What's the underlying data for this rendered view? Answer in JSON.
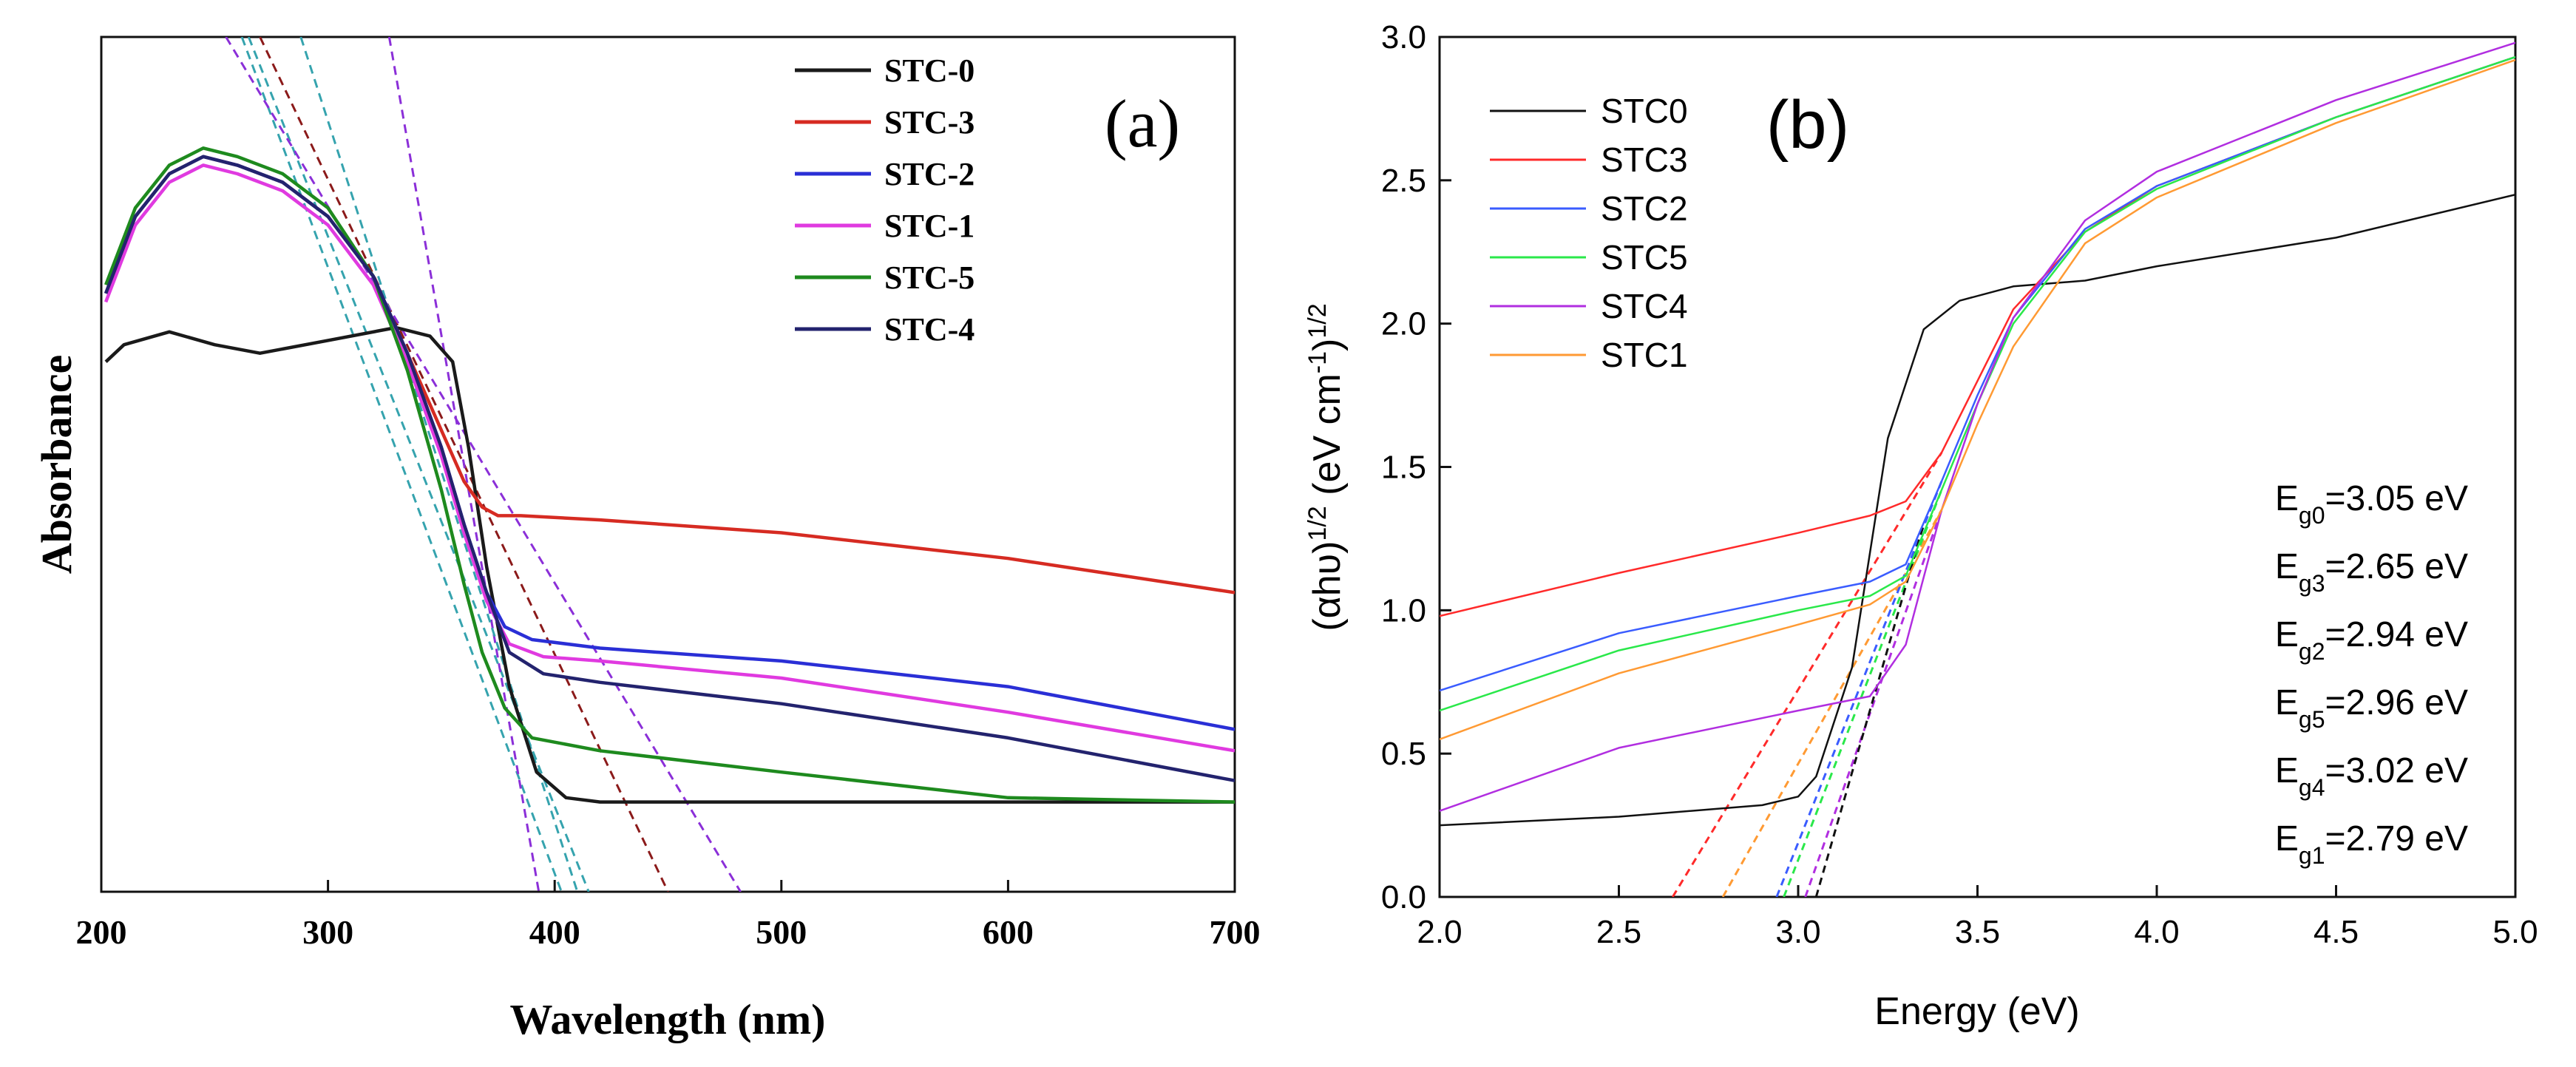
{
  "colors": {
    "black": "#1a1a1a",
    "red": "#d62b22",
    "blue": "#2a2fd6",
    "magenta": "#e03ae0",
    "green": "#1e8a1e",
    "navy": "#23236e",
    "tealDash": "#35a3ae",
    "brownDash": "#8b1a1a",
    "purpleDash": "#8b2fd8",
    "b_black": "#111111",
    "b_red": "#ff2a2a",
    "b_blue": "#3a5cff",
    "b_green": "#2ae84a",
    "b_purple": "#b12ee0",
    "b_orange": "#ff9a33"
  },
  "chart_data": [
    {
      "type": "line",
      "panel_label": "(a)",
      "xlabel": "Wavelength (nm)",
      "ylabel": "Absorbance",
      "xlim": [
        200,
        700
      ],
      "ylim": [
        0,
        1
      ],
      "xticks": [
        "200",
        "300",
        "400",
        "500",
        "600",
        "700"
      ],
      "yticks": [],
      "legend": [
        "STC-0",
        "STC-3",
        "STC-2",
        "STC-1",
        "STC-5",
        "STC-4"
      ],
      "legend_position": "top-right",
      "series": [
        {
          "name": "STC-0",
          "color_key": "black",
          "x": [
            202,
            210,
            230,
            250,
            270,
            300,
            330,
            345,
            355,
            362,
            370,
            380,
            392,
            405,
            420,
            500,
            600,
            700
          ],
          "y": [
            0.62,
            0.64,
            0.655,
            0.64,
            0.63,
            0.645,
            0.66,
            0.65,
            0.62,
            0.52,
            0.38,
            0.24,
            0.14,
            0.11,
            0.105,
            0.105,
            0.105,
            0.105
          ]
        },
        {
          "name": "STC-3",
          "color_key": "red",
          "x": [
            202,
            215,
            230,
            245,
            260,
            280,
            300,
            320,
            335,
            350,
            360,
            368,
            375,
            385,
            420,
            500,
            600,
            700
          ],
          "y": [
            0.7,
            0.79,
            0.84,
            0.86,
            0.85,
            0.83,
            0.79,
            0.72,
            0.63,
            0.54,
            0.48,
            0.45,
            0.44,
            0.44,
            0.435,
            0.42,
            0.39,
            0.35
          ]
        },
        {
          "name": "STC-2",
          "color_key": "blue",
          "x": [
            202,
            215,
            230,
            245,
            260,
            280,
            300,
            320,
            335,
            350,
            360,
            370,
            378,
            390,
            420,
            500,
            600,
            700
          ],
          "y": [
            0.7,
            0.79,
            0.84,
            0.86,
            0.85,
            0.83,
            0.79,
            0.72,
            0.63,
            0.52,
            0.43,
            0.35,
            0.31,
            0.295,
            0.285,
            0.27,
            0.24,
            0.19
          ]
        },
        {
          "name": "STC-1",
          "color_key": "magenta",
          "x": [
            202,
            215,
            230,
            245,
            260,
            280,
            300,
            320,
            335,
            350,
            360,
            370,
            380,
            395,
            420,
            500,
            600,
            700
          ],
          "y": [
            0.69,
            0.78,
            0.83,
            0.85,
            0.84,
            0.82,
            0.78,
            0.71,
            0.62,
            0.51,
            0.42,
            0.34,
            0.29,
            0.275,
            0.27,
            0.25,
            0.21,
            0.165
          ]
        },
        {
          "name": "STC-5",
          "color_key": "green",
          "x": [
            202,
            215,
            230,
            245,
            260,
            280,
            300,
            320,
            335,
            350,
            360,
            368,
            378,
            390,
            420,
            500,
            600,
            700
          ],
          "y": [
            0.71,
            0.8,
            0.85,
            0.87,
            0.86,
            0.84,
            0.8,
            0.72,
            0.61,
            0.47,
            0.36,
            0.28,
            0.215,
            0.18,
            0.165,
            0.14,
            0.11,
            0.105
          ]
        },
        {
          "name": "STC-4",
          "color_key": "navy",
          "x": [
            202,
            215,
            230,
            245,
            260,
            280,
            300,
            320,
            335,
            350,
            360,
            370,
            380,
            395,
            420,
            500,
            600,
            700
          ],
          "y": [
            0.7,
            0.79,
            0.84,
            0.86,
            0.85,
            0.83,
            0.79,
            0.72,
            0.63,
            0.52,
            0.43,
            0.35,
            0.28,
            0.255,
            0.245,
            0.22,
            0.18,
            0.13
          ]
        }
      ],
      "tangent_lines": [
        {
          "color_key": "tealDash",
          "x": [
            262,
            403
          ],
          "y": [
            1.0,
            0.0
          ]
        },
        {
          "color_key": "tealDash",
          "x": [
            265,
            415
          ],
          "y": [
            1.0,
            0.0
          ]
        },
        {
          "color_key": "brownDash",
          "x": [
            270,
            450
          ],
          "y": [
            1.0,
            0.0
          ]
        },
        {
          "color_key": "purpleDash",
          "x": [
            255,
            482
          ],
          "y": [
            1.0,
            0.0
          ]
        },
        {
          "color_key": "purpleDash",
          "x": [
            327,
            393
          ],
          "y": [
            1.0,
            0.0
          ]
        },
        {
          "color_key": "tealDash",
          "x": [
            288,
            410
          ],
          "y": [
            1.0,
            0.0
          ]
        }
      ]
    },
    {
      "type": "line",
      "panel_label": "(b)",
      "xlabel": "Energy (eV)",
      "ylabel_main": "(αhυ)",
      "ylabel_sup1": "1/2",
      "ylabel_mid": " (eV cm",
      "ylabel_sup2": "-1",
      "ylabel_end": ")",
      "ylabel_sup3": "1/2",
      "xlim": [
        2.0,
        5.0
      ],
      "ylim": [
        0.0,
        3.0
      ],
      "xticks": [
        "2.0",
        "2.5",
        "3.0",
        "3.5",
        "4.0",
        "4.5",
        "5.0"
      ],
      "yticks": [
        "0.0",
        "0.5",
        "1.0",
        "1.5",
        "2.0",
        "2.5",
        "3.0"
      ],
      "legend": [
        "STC0",
        "STC3",
        "STC2",
        "STC5",
        "STC4",
        "STC1"
      ],
      "legend_position": "top-left",
      "series": [
        {
          "name": "STC0",
          "color_key": "b_black",
          "x": [
            2.0,
            2.5,
            2.9,
            3.0,
            3.05,
            3.15,
            3.25,
            3.35,
            3.45,
            3.6,
            3.8,
            4.0,
            4.5,
            5.0
          ],
          "y": [
            0.25,
            0.28,
            0.32,
            0.35,
            0.42,
            0.8,
            1.6,
            1.98,
            2.08,
            2.13,
            2.15,
            2.2,
            2.3,
            2.45
          ]
        },
        {
          "name": "STC3",
          "color_key": "b_red",
          "x": [
            2.0,
            2.5,
            3.0,
            3.2,
            3.3,
            3.4,
            3.5,
            3.6,
            3.8,
            4.0,
            4.5,
            5.0
          ],
          "y": [
            0.98,
            1.13,
            1.27,
            1.33,
            1.38,
            1.55,
            1.8,
            2.05,
            2.32,
            2.48,
            2.72,
            2.93
          ]
        },
        {
          "name": "STC2",
          "color_key": "b_blue",
          "x": [
            2.0,
            2.5,
            3.0,
            3.2,
            3.3,
            3.4,
            3.5,
            3.6,
            3.8,
            4.0,
            4.5,
            5.0
          ],
          "y": [
            0.72,
            0.92,
            1.05,
            1.1,
            1.16,
            1.45,
            1.75,
            2.02,
            2.33,
            2.48,
            2.72,
            2.93
          ]
        },
        {
          "name": "STC5",
          "color_key": "b_green",
          "x": [
            2.0,
            2.5,
            3.0,
            3.2,
            3.3,
            3.4,
            3.5,
            3.6,
            3.8,
            4.0,
            4.5,
            5.0
          ],
          "y": [
            0.65,
            0.86,
            1.0,
            1.05,
            1.12,
            1.42,
            1.72,
            2.0,
            2.32,
            2.47,
            2.72,
            2.93
          ]
        },
        {
          "name": "STC4",
          "color_key": "b_purple",
          "x": [
            2.0,
            2.5,
            3.0,
            3.2,
            3.3,
            3.4,
            3.5,
            3.6,
            3.8,
            4.0,
            4.5,
            5.0
          ],
          "y": [
            0.3,
            0.52,
            0.65,
            0.7,
            0.88,
            1.35,
            1.72,
            2.02,
            2.36,
            2.53,
            2.78,
            2.98
          ]
        },
        {
          "name": "STC1",
          "color_key": "b_orange",
          "x": [
            2.0,
            2.5,
            3.0,
            3.2,
            3.3,
            3.4,
            3.5,
            3.6,
            3.8,
            4.0,
            4.5,
            5.0
          ],
          "y": [
            0.55,
            0.78,
            0.95,
            1.02,
            1.1,
            1.35,
            1.65,
            1.92,
            2.28,
            2.44,
            2.7,
            2.92
          ]
        }
      ],
      "tangent_lines": [
        {
          "color_key": "b_red",
          "x": [
            2.65,
            3.4
          ],
          "y": [
            0.0,
            1.55
          ]
        },
        {
          "color_key": "b_orange",
          "x": [
            2.79,
            3.4
          ],
          "y": [
            0.0,
            1.35
          ]
        },
        {
          "color_key": "b_blue",
          "x": [
            2.94,
            3.4
          ],
          "y": [
            0.0,
            1.45
          ]
        },
        {
          "color_key": "b_green",
          "x": [
            2.96,
            3.4
          ],
          "y": [
            0.0,
            1.42
          ]
        },
        {
          "color_key": "b_purple",
          "x": [
            3.02,
            3.4
          ],
          "y": [
            0.0,
            1.35
          ]
        },
        {
          "color_key": "b_black",
          "x": [
            3.05,
            3.35
          ],
          "y": [
            0.0,
            1.3
          ]
        }
      ],
      "annotations": [
        {
          "pre": "E",
          "sub": "g0",
          "post": "=3.05 eV"
        },
        {
          "pre": "E",
          "sub": "g3",
          "post": "=2.65 eV"
        },
        {
          "pre": "E",
          "sub": "g2",
          "post": "=2.94 eV"
        },
        {
          "pre": "E",
          "sub": "g5",
          "post": "=2.96 eV"
        },
        {
          "pre": "E",
          "sub": "g4",
          "post": "=3.02 eV"
        },
        {
          "pre": "E",
          "sub": "g1",
          "post": "=2.79 eV"
        }
      ]
    }
  ]
}
